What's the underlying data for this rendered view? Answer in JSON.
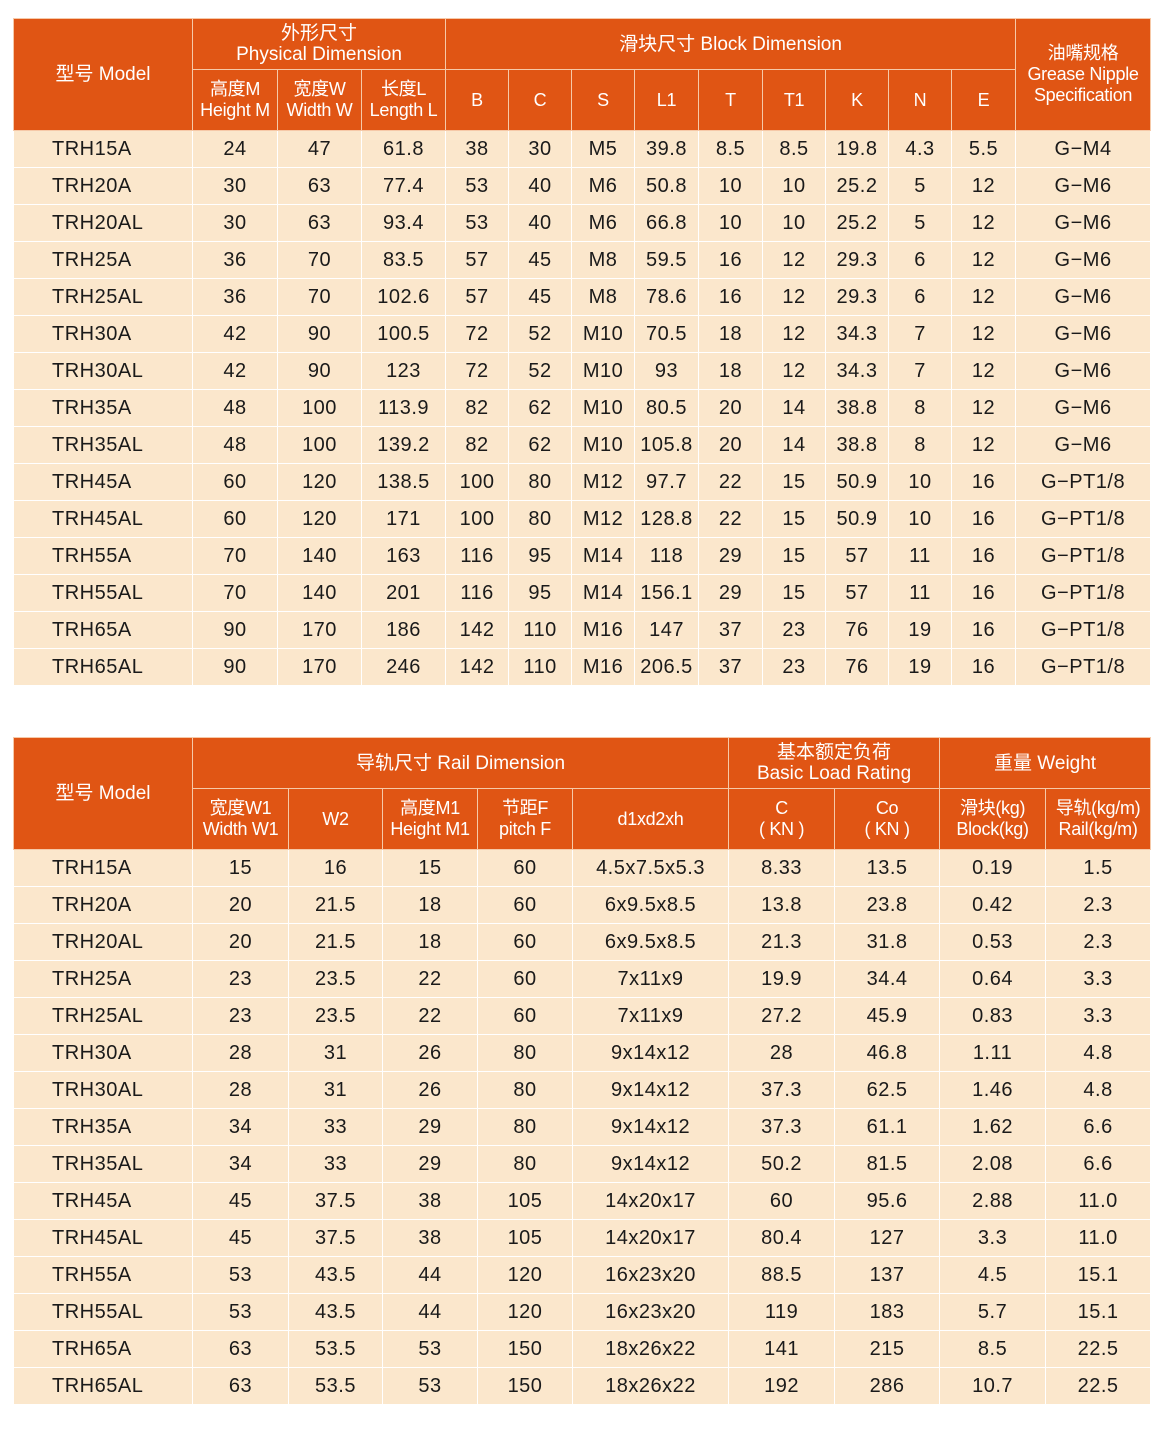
{
  "colors": {
    "header_bg": "#e05514",
    "row_bg": "#fbe7cc",
    "header_text": "#ffffff"
  },
  "block_table": {
    "model_header": "型号 Model",
    "physical_group": [
      "外形尺寸",
      "Physical Dimension"
    ],
    "block_group": "滑块尺寸 Block Dimension",
    "grease_header": [
      "油嘴规格",
      "Grease Nipple",
      "Specification"
    ],
    "sub_headers": [
      [
        "高度M",
        "Height M"
      ],
      [
        "宽度W",
        "Width W"
      ],
      [
        "长度L",
        "Length L"
      ],
      [
        "B"
      ],
      [
        "C"
      ],
      [
        "S"
      ],
      [
        "L1"
      ],
      [
        "T"
      ],
      [
        "T1"
      ],
      [
        "K"
      ],
      [
        "N"
      ],
      [
        "E"
      ]
    ],
    "rows": [
      [
        "TRH15A",
        "24",
        "47",
        "61.8",
        "38",
        "30",
        "M5",
        "39.8",
        "8.5",
        "8.5",
        "19.8",
        "4.3",
        "5.5",
        "G−M4"
      ],
      [
        "TRH20A",
        "30",
        "63",
        "77.4",
        "53",
        "40",
        "M6",
        "50.8",
        "10",
        "10",
        "25.2",
        "5",
        "12",
        "G−M6"
      ],
      [
        "TRH20AL",
        "30",
        "63",
        "93.4",
        "53",
        "40",
        "M6",
        "66.8",
        "10",
        "10",
        "25.2",
        "5",
        "12",
        "G−M6"
      ],
      [
        "TRH25A",
        "36",
        "70",
        "83.5",
        "57",
        "45",
        "M8",
        "59.5",
        "16",
        "12",
        "29.3",
        "6",
        "12",
        "G−M6"
      ],
      [
        "TRH25AL",
        "36",
        "70",
        "102.6",
        "57",
        "45",
        "M8",
        "78.6",
        "16",
        "12",
        "29.3",
        "6",
        "12",
        "G−M6"
      ],
      [
        "TRH30A",
        "42",
        "90",
        "100.5",
        "72",
        "52",
        "M10",
        "70.5",
        "18",
        "12",
        "34.3",
        "7",
        "12",
        "G−M6"
      ],
      [
        "TRH30AL",
        "42",
        "90",
        "123",
        "72",
        "52",
        "M10",
        "93",
        "18",
        "12",
        "34.3",
        "7",
        "12",
        "G−M6"
      ],
      [
        "TRH35A",
        "48",
        "100",
        "113.9",
        "82",
        "62",
        "M10",
        "80.5",
        "20",
        "14",
        "38.8",
        "8",
        "12",
        "G−M6"
      ],
      [
        "TRH35AL",
        "48",
        "100",
        "139.2",
        "82",
        "62",
        "M10",
        "105.8",
        "20",
        "14",
        "38.8",
        "8",
        "12",
        "G−M6"
      ],
      [
        "TRH45A",
        "60",
        "120",
        "138.5",
        "100",
        "80",
        "M12",
        "97.7",
        "22",
        "15",
        "50.9",
        "10",
        "16",
        "G−PT1/8"
      ],
      [
        "TRH45AL",
        "60",
        "120",
        "171",
        "100",
        "80",
        "M12",
        "128.8",
        "22",
        "15",
        "50.9",
        "10",
        "16",
        "G−PT1/8"
      ],
      [
        "TRH55A",
        "70",
        "140",
        "163",
        "116",
        "95",
        "M14",
        "118",
        "29",
        "15",
        "57",
        "11",
        "16",
        "G−PT1/8"
      ],
      [
        "TRH55AL",
        "70",
        "140",
        "201",
        "116",
        "95",
        "M14",
        "156.1",
        "29",
        "15",
        "57",
        "11",
        "16",
        "G−PT1/8"
      ],
      [
        "TRH65A",
        "90",
        "170",
        "186",
        "142",
        "110",
        "M16",
        "147",
        "37",
        "23",
        "76",
        "19",
        "16",
        "G−PT1/8"
      ],
      [
        "TRH65AL",
        "90",
        "170",
        "246",
        "142",
        "110",
        "M16",
        "206.5",
        "37",
        "23",
        "76",
        "19",
        "16",
        "G−PT1/8"
      ]
    ]
  },
  "rail_table": {
    "model_header": "型号 Model",
    "rail_group": "导轨尺寸 Rail Dimension",
    "load_group": [
      "基本额定负荷",
      "Basic Load Rating"
    ],
    "weight_group": "重量 Weight",
    "sub_headers": [
      [
        "宽度W1",
        "Width W1"
      ],
      [
        "W2"
      ],
      [
        "高度M1",
        "Height M1"
      ],
      [
        "节距F",
        "pitch F"
      ],
      [
        "d1xd2xh"
      ],
      [
        "C",
        "( KN )"
      ],
      [
        "Co",
        "( KN )"
      ],
      [
        "滑块(kg)",
        "Block(kg)"
      ],
      [
        "导轨(kg/m)",
        "Rail(kg/m)"
      ]
    ],
    "rows": [
      [
        "TRH15A",
        "15",
        "16",
        "15",
        "60",
        "4.5x7.5x5.3",
        "8.33",
        "13.5",
        "0.19",
        "1.5"
      ],
      [
        "TRH20A",
        "20",
        "21.5",
        "18",
        "60",
        "6x9.5x8.5",
        "13.8",
        "23.8",
        "0.42",
        "2.3"
      ],
      [
        "TRH20AL",
        "20",
        "21.5",
        "18",
        "60",
        "6x9.5x8.5",
        "21.3",
        "31.8",
        "0.53",
        "2.3"
      ],
      [
        "TRH25A",
        "23",
        "23.5",
        "22",
        "60",
        "7x11x9",
        "19.9",
        "34.4",
        "0.64",
        "3.3"
      ],
      [
        "TRH25AL",
        "23",
        "23.5",
        "22",
        "60",
        "7x11x9",
        "27.2",
        "45.9",
        "0.83",
        "3.3"
      ],
      [
        "TRH30A",
        "28",
        "31",
        "26",
        "80",
        "9x14x12",
        "28",
        "46.8",
        "1.11",
        "4.8"
      ],
      [
        "TRH30AL",
        "28",
        "31",
        "26",
        "80",
        "9x14x12",
        "37.3",
        "62.5",
        "1.46",
        "4.8"
      ],
      [
        "TRH35A",
        "34",
        "33",
        "29",
        "80",
        "9x14x12",
        "37.3",
        "61.1",
        "1.62",
        "6.6"
      ],
      [
        "TRH35AL",
        "34",
        "33",
        "29",
        "80",
        "9x14x12",
        "50.2",
        "81.5",
        "2.08",
        "6.6"
      ],
      [
        "TRH45A",
        "45",
        "37.5",
        "38",
        "105",
        "14x20x17",
        "60",
        "95.6",
        "2.88",
        "11.0"
      ],
      [
        "TRH45AL",
        "45",
        "37.5",
        "38",
        "105",
        "14x20x17",
        "80.4",
        "127",
        "3.3",
        "11.0"
      ],
      [
        "TRH55A",
        "53",
        "43.5",
        "44",
        "120",
        "16x23x20",
        "88.5",
        "137",
        "4.5",
        "15.1"
      ],
      [
        "TRH55AL",
        "53",
        "43.5",
        "44",
        "120",
        "16x23x20",
        "119",
        "183",
        "5.7",
        "15.1"
      ],
      [
        "TRH65A",
        "63",
        "53.5",
        "53",
        "150",
        "18x26x22",
        "141",
        "215",
        "8.5",
        "22.5"
      ],
      [
        "TRH65AL",
        "63",
        "53.5",
        "53",
        "150",
        "18x26x22",
        "192",
        "286",
        "10.7",
        "22.5"
      ]
    ]
  }
}
